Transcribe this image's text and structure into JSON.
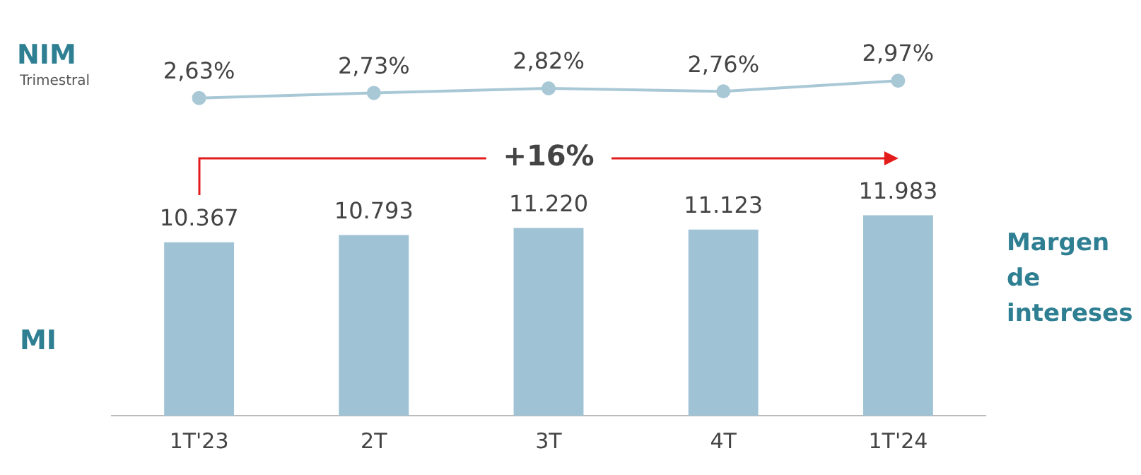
{
  "chart_data": [
    {
      "type": "line",
      "title": "NIM",
      "subtitle": "Trimestral",
      "categories": [
        null,
        null,
        null,
        null,
        null
      ],
      "series": [
        {
          "color": "#a9c8d6",
          "values": [
            2.63,
            2.73,
            2.82,
            2.76,
            2.97
          ],
          "value_labels": [
            "2,63%",
            "2,73%",
            "2,82%",
            "2,76%",
            "2,97%"
          ]
        }
      ],
      "marker": "circle",
      "tick_labels": false,
      "grid": false,
      "legend": false
    },
    {
      "type": "bar",
      "title": "MI",
      "ylabel": "Margen de intereses",
      "categories": [
        "1T'23",
        "2T",
        "3T",
        "4T",
        "1T'24"
      ],
      "series": [
        {
          "color": "#9fc3d5",
          "values": [
            10367,
            10793,
            11220,
            11123,
            11983
          ],
          "value_labels": [
            "10.367",
            "10.793",
            "11.220",
            "11.123",
            "11.983"
          ]
        }
      ],
      "annotations": [
        "+16%"
      ],
      "tick_labels": "x",
      "grid": false,
      "legend": false
    }
  ]
}
